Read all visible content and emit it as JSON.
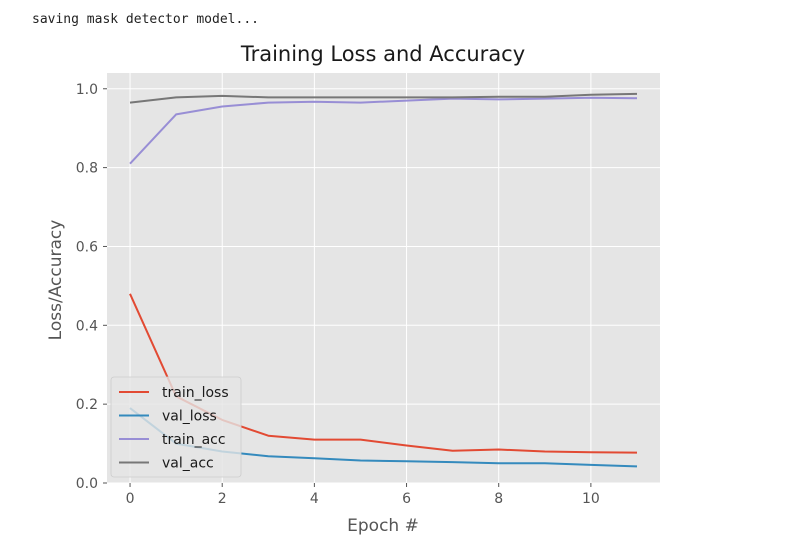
{
  "console": {
    "text": "saving mask detector model..."
  },
  "chart_data": {
    "type": "line",
    "title": "Training Loss and Accuracy",
    "xlabel": "Epoch #",
    "ylabel": "Loss/Accuracy",
    "x": [
      0,
      1,
      2,
      3,
      4,
      5,
      6,
      7,
      8,
      9,
      10,
      11
    ],
    "xlim": [
      -0.5,
      11.5
    ],
    "ylim": [
      0,
      1.04
    ],
    "xticks": [
      0,
      2,
      4,
      6,
      8,
      10
    ],
    "yticks": [
      0.0,
      0.2,
      0.4,
      0.6,
      0.8,
      1.0
    ],
    "xtick_labels": [
      "0",
      "2",
      "4",
      "6",
      "8",
      "10"
    ],
    "ytick_labels": [
      "0.0",
      "0.2",
      "0.4",
      "0.6",
      "0.8",
      "1.0"
    ],
    "grid": true,
    "legend_position": "lower-left",
    "style": "ggplot",
    "series": [
      {
        "name": "train_loss",
        "color": "#E24A33",
        "values": [
          0.48,
          0.22,
          0.16,
          0.12,
          0.11,
          0.11,
          0.095,
          0.082,
          0.085,
          0.08,
          0.078,
          0.077
        ]
      },
      {
        "name": "val_loss",
        "color": "#348ABD",
        "values": [
          0.19,
          0.1,
          0.08,
          0.068,
          0.063,
          0.057,
          0.055,
          0.053,
          0.05,
          0.05,
          0.046,
          0.042
        ]
      },
      {
        "name": "train_acc",
        "color": "#988ED5",
        "values": [
          0.81,
          0.935,
          0.955,
          0.965,
          0.967,
          0.965,
          0.97,
          0.975,
          0.973,
          0.975,
          0.977,
          0.976
        ]
      },
      {
        "name": "val_acc",
        "color": "#777777",
        "values": [
          0.965,
          0.978,
          0.982,
          0.978,
          0.978,
          0.978,
          0.978,
          0.978,
          0.98,
          0.98,
          0.985,
          0.987
        ]
      }
    ]
  }
}
